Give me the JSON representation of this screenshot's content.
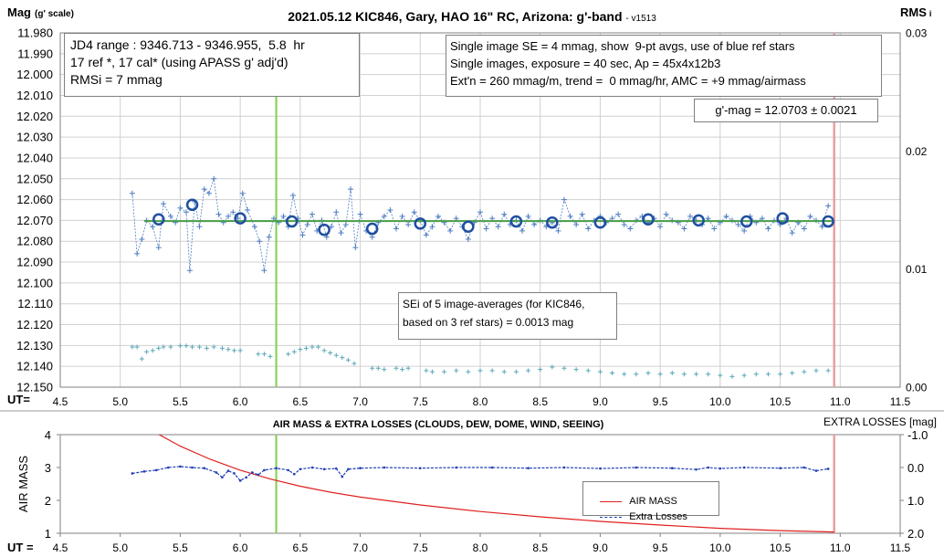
{
  "chart_data": [
    {
      "type": "scatter",
      "title": "2021.05.12 KIC846, Gary, HAO 16\" RC, Arizona: g'-band",
      "title_suffix": "- v1513",
      "ylabel": "Mag",
      "ylabel_suffix": "(g' scale)",
      "y2label": "RMS",
      "y2label_suffix": "i",
      "xlabel": "UT=",
      "xlim": [
        4.5,
        11.5
      ],
      "ylim": [
        11.98,
        12.15
      ],
      "y_reversed": true,
      "y2lim": [
        0.0,
        0.03
      ],
      "x_ticks": [
        "4.5",
        "5.0",
        "5.5",
        "6.0",
        "6.5",
        "7.0",
        "7.5",
        "8.0",
        "8.5",
        "9.0",
        "9.5",
        "10.0",
        "10.5",
        "11.0",
        "11.5"
      ],
      "y_ticks": [
        "11.980",
        "11.990",
        "12.000",
        "12.010",
        "12.020",
        "12.030",
        "12.040",
        "12.050",
        "12.060",
        "12.070",
        "12.080",
        "12.090",
        "12.100",
        "12.110",
        "12.120",
        "12.130",
        "12.140",
        "12.150"
      ],
      "y2_ticks": [
        "0.00",
        "0.01",
        "0.02",
        "0.03"
      ],
      "grid": true,
      "vertical_lines_x": [
        6.3,
        10.95
      ],
      "fit_level": 12.0703,
      "averages": {
        "x": [
          5.32,
          5.6,
          6.0,
          6.43,
          6.7,
          7.1,
          7.5,
          7.9,
          8.3,
          8.6,
          9.0,
          9.4,
          9.82,
          10.22,
          10.52,
          10.9
        ],
        "y": [
          12.0695,
          12.0625,
          12.069,
          12.0705,
          12.0745,
          12.074,
          12.0715,
          12.073,
          12.0705,
          12.071,
          12.071,
          12.0695,
          12.07,
          12.0705,
          12.069,
          12.0705
        ]
      },
      "singles": {
        "x": [
          5.1,
          5.14,
          5.18,
          5.22,
          5.27,
          5.32,
          5.36,
          5.42,
          5.46,
          5.5,
          5.55,
          5.58,
          5.62,
          5.66,
          5.7,
          5.74,
          5.78,
          5.82,
          5.86,
          5.9,
          5.94,
          5.98,
          6.02,
          6.06,
          6.12,
          6.16,
          6.2,
          6.24,
          6.28,
          6.32,
          6.36,
          6.4,
          6.44,
          6.48,
          6.52,
          6.56,
          6.6,
          6.64,
          6.68,
          6.72,
          6.76,
          6.8,
          6.84,
          6.88,
          6.92,
          6.96,
          7.0,
          7.05,
          7.1,
          7.15,
          7.2,
          7.25,
          7.3,
          7.35,
          7.4,
          7.45,
          7.5,
          7.55,
          7.6,
          7.65,
          7.7,
          7.75,
          7.8,
          7.85,
          7.9,
          7.95,
          8.0,
          8.05,
          8.1,
          8.15,
          8.2,
          8.25,
          8.3,
          8.35,
          8.4,
          8.45,
          8.5,
          8.55,
          8.6,
          8.65,
          8.7,
          8.75,
          8.8,
          8.85,
          8.9,
          8.95,
          9.0,
          9.05,
          9.1,
          9.15,
          9.2,
          9.25,
          9.3,
          9.35,
          9.4,
          9.45,
          9.5,
          9.55,
          9.6,
          9.65,
          9.7,
          9.75,
          9.8,
          9.85,
          9.9,
          9.95,
          10.0,
          10.05,
          10.1,
          10.15,
          10.2,
          10.25,
          10.3,
          10.35,
          10.4,
          10.45,
          10.5,
          10.55,
          10.6,
          10.65,
          10.7,
          10.75,
          10.8,
          10.85,
          10.9
        ],
        "y": [
          12.057,
          12.086,
          12.079,
          12.07,
          12.073,
          12.083,
          12.062,
          12.068,
          12.071,
          12.064,
          12.066,
          12.094,
          12.061,
          12.073,
          12.055,
          12.057,
          12.05,
          12.067,
          12.071,
          12.068,
          12.066,
          12.069,
          12.057,
          12.065,
          12.073,
          12.08,
          12.094,
          12.078,
          12.069,
          12.071,
          12.068,
          12.073,
          12.058,
          12.069,
          12.077,
          12.072,
          12.067,
          12.075,
          12.07,
          12.078,
          12.073,
          12.066,
          12.076,
          12.072,
          12.055,
          12.083,
          12.067,
          12.075,
          12.078,
          12.071,
          12.068,
          12.065,
          12.074,
          12.068,
          12.072,
          12.066,
          12.07,
          12.077,
          12.073,
          12.068,
          12.071,
          12.075,
          12.069,
          12.073,
          12.079,
          12.071,
          12.066,
          12.074,
          12.069,
          12.073,
          12.067,
          12.072,
          12.07,
          12.075,
          12.068,
          12.072,
          12.07,
          12.073,
          12.071,
          12.075,
          12.06,
          12.068,
          12.072,
          12.067,
          12.074,
          12.07,
          12.068,
          12.071,
          12.069,
          12.067,
          12.072,
          12.074,
          12.07,
          12.068,
          12.071,
          12.069,
          12.073,
          12.067,
          12.07,
          12.071,
          12.074,
          12.068,
          12.07,
          12.072,
          12.069,
          12.074,
          12.071,
          12.068,
          12.07,
          12.072,
          12.075,
          12.068,
          12.071,
          12.069,
          12.074,
          12.07,
          12.072,
          12.069,
          12.076,
          12.071,
          12.074,
          12.068,
          12.07,
          12.073,
          12.063
        ]
      },
      "sei_series": {
        "x": [
          5.1,
          5.14,
          5.18,
          5.22,
          5.27,
          5.32,
          5.36,
          5.42,
          5.5,
          5.55,
          5.6,
          5.66,
          5.72,
          5.78,
          5.85,
          5.9,
          5.95,
          6.0,
          6.15,
          6.2,
          6.25,
          6.4,
          6.45,
          6.5,
          6.55,
          6.6,
          6.65,
          6.7,
          6.75,
          6.8,
          6.85,
          6.9,
          6.95,
          7.1,
          7.15,
          7.2,
          7.3,
          7.35,
          7.4,
          7.55,
          7.6,
          7.7,
          7.8,
          7.9,
          8.0,
          8.1,
          8.2,
          8.3,
          8.4,
          8.5,
          8.6,
          8.7,
          8.8,
          8.9,
          9.0,
          9.1,
          9.2,
          9.3,
          9.4,
          9.5,
          9.6,
          9.7,
          9.8,
          9.9,
          10.0,
          10.1,
          10.2,
          10.3,
          10.4,
          10.5,
          10.6,
          10.7,
          10.8,
          10.9
        ],
        "rms": [
          0.0034,
          0.0034,
          0.0024,
          0.003,
          0.0031,
          0.0033,
          0.0034,
          0.0034,
          0.0035,
          0.0035,
          0.0034,
          0.0034,
          0.0033,
          0.0034,
          0.0033,
          0.0032,
          0.0031,
          0.0031,
          0.0028,
          0.0028,
          0.0026,
          0.0028,
          0.003,
          0.0032,
          0.0033,
          0.0034,
          0.0034,
          0.0031,
          0.0029,
          0.0027,
          0.0025,
          0.0023,
          0.002,
          0.0016,
          0.0016,
          0.0015,
          0.0016,
          0.0015,
          0.0016,
          0.0014,
          0.0013,
          0.0013,
          0.0014,
          0.0013,
          0.0014,
          0.0014,
          0.0013,
          0.0013,
          0.0014,
          0.0015,
          0.0017,
          0.0016,
          0.0015,
          0.0014,
          0.0013,
          0.0012,
          0.0011,
          0.0011,
          0.0012,
          0.0011,
          0.0012,
          0.0011,
          0.0011,
          0.0011,
          0.001,
          0.0009,
          0.001,
          0.0011,
          0.0011,
          0.0011,
          0.0012,
          0.0013,
          0.0014,
          0.0014
        ]
      },
      "annotations": {
        "info_box": [
          "JD4 range : 9346.713 - 9346.955,  5.8  hr",
          "17 ref *, 17 cal* (using APASS g' adj'd)",
          "RMSi = 7 mmag"
        ],
        "params_box": [
          "Single image SE = 4 mmag, show  9-pt avgs, use of blue ref stars",
          "Single images, exposure = 40 sec, Ap = 45x4x12b3",
          "Ext'n = 260 mmag/m, trend =  0 mmag/hr, AMC = +9 mmag/airmass"
        ],
        "result_box": "g'-mag = 12.0703 ± 0.0021",
        "sei_box": [
          "SEi of 5 image-averages (for KIC846,",
          "based on 3 ref stars) = 0.0013 mag"
        ]
      }
    },
    {
      "type": "line",
      "title": "AIR MASS & EXTRA LOSSES (CLOUDS, DEW, DOME, WIND, SEEING)",
      "ylabel": "AIR MASS",
      "y2label": "EXTRA LOSSES [mag]",
      "xlabel": "UT =",
      "xlim": [
        4.5,
        11.5
      ],
      "ylim": [
        1,
        4
      ],
      "y2lim": [
        -1.0,
        2.0
      ],
      "y2_reversed": true,
      "x_ticks": [
        "4.5",
        "5.0",
        "5.5",
        "6.0",
        "6.5",
        "7.0",
        "7.5",
        "8.0",
        "8.5",
        "9.0",
        "9.5",
        "10.0",
        "10.5",
        "11.0",
        "11.5"
      ],
      "y_ticks": [
        "1",
        "2",
        "3",
        "4"
      ],
      "y2_ticks": [
        "-1.0",
        "0.0",
        "1.0",
        "2.0"
      ],
      "vertical_lines_x": [
        6.3,
        10.95
      ],
      "legend": [
        "AIR MASS",
        "Extra Losses"
      ],
      "legend_position": "bottom-right",
      "series": [
        {
          "name": "AIR MASS",
          "color": "#e02020",
          "x": [
            5.3,
            5.5,
            5.75,
            6.0,
            6.25,
            6.5,
            6.75,
            7.0,
            7.5,
            8.0,
            8.5,
            9.0,
            9.5,
            10.0,
            10.5,
            10.95
          ],
          "y": [
            4.05,
            3.65,
            3.25,
            2.92,
            2.65,
            2.43,
            2.25,
            2.1,
            1.86,
            1.66,
            1.5,
            1.36,
            1.25,
            1.15,
            1.08,
            1.04
          ]
        },
        {
          "name": "Extra Losses",
          "color": "#1f3fb4",
          "x": [
            5.1,
            5.2,
            5.3,
            5.4,
            5.5,
            5.6,
            5.7,
            5.8,
            5.85,
            5.9,
            5.95,
            6.0,
            6.05,
            6.1,
            6.15,
            6.2,
            6.3,
            6.4,
            6.45,
            6.5,
            6.6,
            6.7,
            6.8,
            6.85,
            6.9,
            7.0,
            7.2,
            7.5,
            7.8,
            8.1,
            8.4,
            8.7,
            9.0,
            9.3,
            9.6,
            9.8,
            9.9,
            10.0,
            10.2,
            10.5,
            10.7,
            10.8,
            10.9
          ],
          "y": [
            0.18,
            0.12,
            0.08,
            0.0,
            -0.03,
            0.0,
            0.02,
            0.15,
            0.3,
            0.1,
            0.18,
            0.4,
            0.3,
            0.15,
            0.22,
            0.08,
            0.02,
            0.08,
            0.2,
            0.05,
            0.0,
            0.05,
            0.03,
            0.28,
            0.05,
            0.02,
            0.0,
            0.02,
            0.0,
            0.0,
            0.02,
            0.0,
            0.03,
            0.0,
            0.02,
            0.06,
            0.0,
            0.03,
            0.0,
            0.02,
            0.0,
            0.1,
            0.04
          ]
        }
      ]
    }
  ]
}
